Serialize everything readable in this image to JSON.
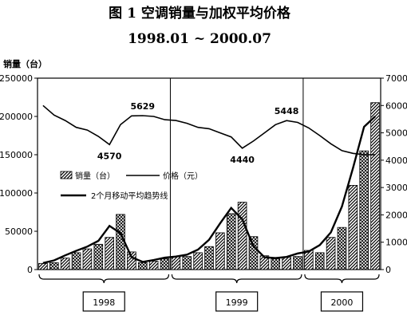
{
  "chart_data": {
    "type": "bar",
    "title": "图 1  空调销量与加权平均价格",
    "subtitle": "1998.01 ~ 2000.07",
    "ylabel": "销量（台）",
    "ylim": [
      0,
      250000
    ],
    "y2lim": [
      0,
      7000
    ],
    "yticks": [
      "250000",
      "200000",
      "150000",
      "100000",
      "50000",
      "0"
    ],
    "y2ticks": [
      "7000",
      "6000",
      "5000",
      "4000",
      "3000",
      "2000",
      "1000",
      "0"
    ],
    "year_groups": [
      {
        "label": "1998",
        "start": 0,
        "end": 11
      },
      {
        "label": "1999",
        "start": 12,
        "end": 23
      },
      {
        "label": "2000",
        "start": 24,
        "end": 30
      }
    ],
    "legend": {
      "bar": "销量（台）",
      "price": "价格（元）",
      "ma": "2个月移动平均趋势线"
    },
    "series": [
      {
        "name": "销量（台）",
        "values": [
          8000,
          9000,
          15000,
          22000,
          27000,
          33000,
          42000,
          72000,
          23000,
          9000,
          11000,
          14000,
          17000,
          17000,
          22000,
          30000,
          48000,
          73000,
          88000,
          43000,
          18000,
          14000,
          16000,
          17000,
          25000,
          22000,
          42000,
          55000,
          110000,
          155000,
          218000
        ]
      },
      {
        "name": "价格（元）",
        "axis": "right",
        "values": [
          6000,
          5650,
          5450,
          5200,
          5100,
          4870,
          4570,
          5300,
          5620,
          5629,
          5600,
          5480,
          5450,
          5350,
          5200,
          5150,
          5000,
          4850,
          4440,
          4700,
          5000,
          5300,
          5448,
          5380,
          5180,
          4900,
          4600,
          4350,
          4250,
          4200,
          4200
        ]
      },
      {
        "name": "2个月移动平均趋势线",
        "values": [
          8500,
          12000,
          18500,
          24500,
          30000,
          37500,
          57000,
          47500,
          16000,
          10000,
          12500,
          15500,
          17000,
          19500,
          26000,
          39000,
          60500,
          80500,
          65500,
          30500,
          16000,
          15000,
          16500,
          21000,
          23500,
          32000,
          48500,
          82500,
          132500,
          186500,
          200000
        ]
      }
    ],
    "annotations": [
      {
        "text": "4570",
        "index": 6
      },
      {
        "text": "5629",
        "index": 9
      },
      {
        "text": "4440",
        "index": 18
      },
      {
        "text": "5448",
        "index": 22
      }
    ],
    "grid": false,
    "legend_position": "middle-left"
  }
}
